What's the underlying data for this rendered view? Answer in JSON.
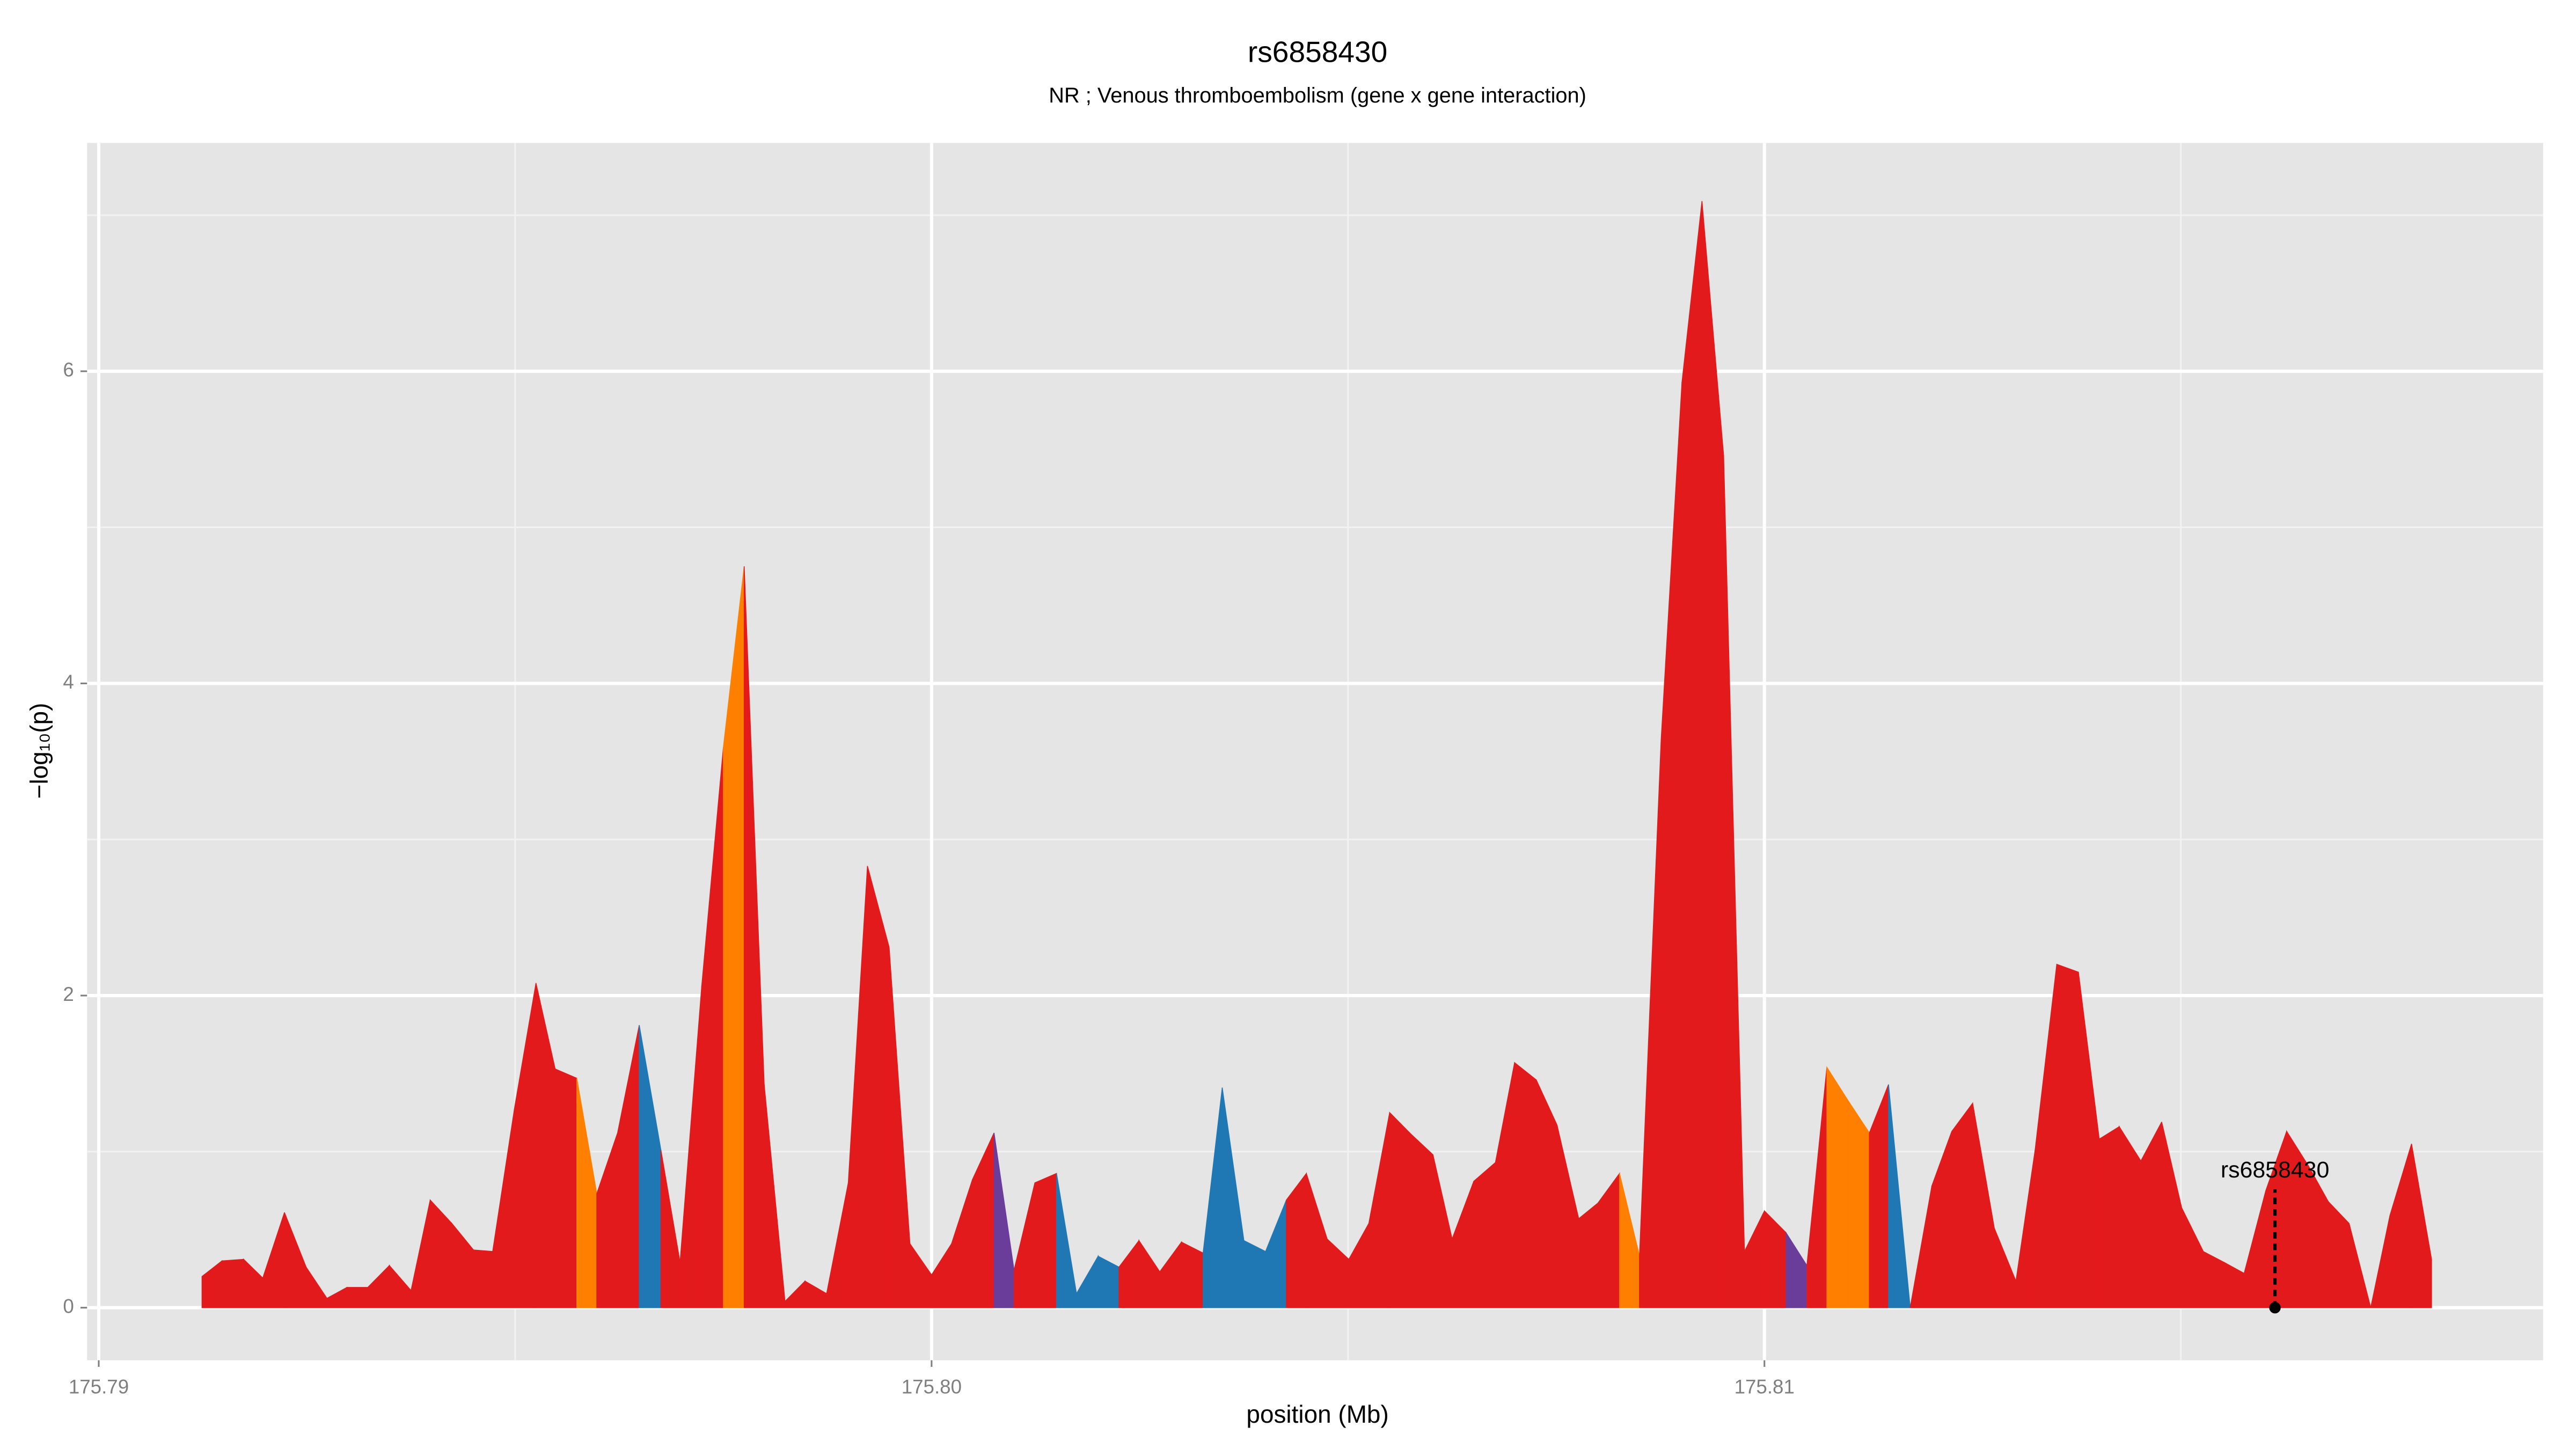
{
  "chart_data": {
    "type": "area",
    "title": "rs6858430",
    "subtitle": "NR ; Venous thromboembolism (gene x gene interaction)",
    "x_label": "position (Mb)",
    "y_label": "−log₁₀(p)",
    "xlim": [
      175.78986,
      175.81935
    ],
    "ylim": [
      -0.337,
      7.463
    ],
    "xticks": [
      175.79,
      {
        "value": 175.8,
        "label": "175.80"
      },
      175.81
    ],
    "yticks": [
      0,
      2,
      4,
      6
    ],
    "x_minor_grid": [
      175.795,
      175.805,
      175.815
    ],
    "y_minor_grid": [
      1,
      3,
      5,
      7
    ],
    "grid": true,
    "x": [
      175.79124,
      175.79148,
      175.79174,
      175.79197,
      175.79223,
      175.79249,
      175.79274,
      175.79298,
      175.79323,
      175.79349,
      175.79375,
      175.79398,
      175.79424,
      175.7945,
      175.79473,
      175.79499,
      175.79525,
      175.79548,
      175.79574,
      175.79598,
      175.79623,
      175.79649,
      175.79675,
      175.79698,
      175.79724,
      175.7975,
      175.79775,
      175.79799,
      175.79824,
      175.79848,
      175.79874,
      175.799,
      175.79923,
      175.79949,
      175.79974,
      175.8,
      175.80024,
      175.80049,
      175.80075,
      175.80099,
      175.80124,
      175.8015,
      175.80174,
      175.802,
      175.80225,
      175.80249,
      175.80274,
      175.803,
      175.80326,
      175.80349,
      175.80375,
      175.80401,
      175.80426,
      175.8045,
      175.80475,
      175.80501,
      175.80525,
      175.8055,
      175.80576,
      175.80602,
      175.80625,
      175.80651,
      175.80677,
      175.807,
      175.80726,
      175.80751,
      175.80777,
      175.808,
      175.80826,
      175.8085,
      175.80876,
      175.80901,
      175.80925,
      175.80951,
      175.80976,
      175.81,
      175.81026,
      175.81051,
      175.81075,
      175.811,
      175.81126,
      175.81149,
      175.81175,
      175.81201,
      175.81225,
      175.8125,
      175.81276,
      175.81302,
      175.81325,
      175.81351,
      175.81377,
      175.81402,
      175.81426,
      175.81452,
      175.81477,
      175.81501,
      175.81527,
      175.81552,
      175.81576,
      175.81602,
      175.81627,
      175.81653,
      175.81677,
      175.81702,
      175.81728,
      175.81751,
      175.81777,
      175.81801
    ],
    "values": [
      0.2,
      0.3,
      0.31,
      0.19,
      0.61,
      0.26,
      0.06,
      0.13,
      0.13,
      0.27,
      0.11,
      0.69,
      0.54,
      0.37,
      0.36,
      1.27,
      2.08,
      1.53,
      1.47,
      0.73,
      1.12,
      1.81,
      1.01,
      0.29,
      2.06,
      3.59,
      4.75,
      1.43,
      0.04,
      0.17,
      0.09,
      0.8,
      2.83,
      2.31,
      0.41,
      0.21,
      0.41,
      0.82,
      1.12,
      0.24,
      0.8,
      0.86,
      0.09,
      0.33,
      0.26,
      0.43,
      0.23,
      0.42,
      0.35,
      1.41,
      0.43,
      0.36,
      0.69,
      0.86,
      0.44,
      0.31,
      0.54,
      1.25,
      1.11,
      0.98,
      0.44,
      0.81,
      0.93,
      1.57,
      1.46,
      1.17,
      0.57,
      0.67,
      0.86,
      0.33,
      3.64,
      5.93,
      7.09,
      5.46,
      0.36,
      0.62,
      0.48,
      0.27,
      1.54,
      1.33,
      1.12,
      1.43,
      0.0,
      0.78,
      1.13,
      1.31,
      0.51,
      0.17,
      1.01,
      2.2,
      2.15,
      1.08,
      1.16,
      0.94,
      1.19,
      0.64,
      0.36,
      0.29,
      0.22,
      0.75,
      1.13,
      0.91,
      0.68,
      0.54,
      0.0,
      0.59,
      1.05,
      0.31
    ],
    "segment_colors": [
      "#e31a1c",
      "#e31a1c",
      "#e31a1c",
      "#e31a1c",
      "#e31a1c",
      "#e31a1c",
      "#e31a1c",
      "#e31a1c",
      "#e31a1c",
      "#e31a1c",
      "#e31a1c",
      "#e31a1c",
      "#e31a1c",
      "#e31a1c",
      "#e31a1c",
      "#e31a1c",
      "#e31a1c",
      "#e31a1c",
      "#ff7f00",
      "#e31a1c",
      "#e31a1c",
      "#1f78b4",
      "#e31a1c",
      "#e31a1c",
      "#e31a1c",
      "#ff7f00",
      "#e31a1c",
      "#e31a1c",
      "#e31a1c",
      "#e31a1c",
      "#e31a1c",
      "#e31a1c",
      "#e31a1c",
      "#e31a1c",
      "#e31a1c",
      "#e31a1c",
      "#e31a1c",
      "#e31a1c",
      "#6a3d9a",
      "#e31a1c",
      "#e31a1c",
      "#1f78b4",
      "#1f78b4",
      "#1f78b4",
      "#e31a1c",
      "#e31a1c",
      "#e31a1c",
      "#e31a1c",
      "#1f78b4",
      "#1f78b4",
      "#1f78b4",
      "#1f78b4",
      "#e31a1c",
      "#e31a1c",
      "#e31a1c",
      "#e31a1c",
      "#e31a1c",
      "#e31a1c",
      "#e31a1c",
      "#e31a1c",
      "#e31a1c",
      "#e31a1c",
      "#e31a1c",
      "#e31a1c",
      "#e31a1c",
      "#e31a1c",
      "#e31a1c",
      "#e31a1c",
      "#ff7f00",
      "#e31a1c",
      "#e31a1c",
      "#e31a1c",
      "#e31a1c",
      "#e31a1c",
      "#e31a1c",
      "#e31a1c",
      "#6a3d9a",
      "#e31a1c",
      "#ff7f00",
      "#ff7f00",
      "#e31a1c",
      "#1f78b4",
      "#e31a1c",
      "#e31a1c",
      "#e31a1c",
      "#e31a1c",
      "#e31a1c",
      "#e31a1c",
      "#e31a1c",
      "#e31a1c",
      "#e31a1c",
      "#e31a1c",
      "#e31a1c",
      "#e31a1c",
      "#e31a1c",
      "#e31a1c",
      "#e31a1c",
      "#e31a1c",
      "#e31a1c",
      "#e31a1c",
      "#e31a1c",
      "#e31a1c",
      "#e31a1c",
      "#e31a1c",
      "#e31a1c",
      "#e31a1c",
      "#e31a1c"
    ],
    "annotation": {
      "label": "rs6858430",
      "x": 175.81613,
      "y": 0
    }
  }
}
